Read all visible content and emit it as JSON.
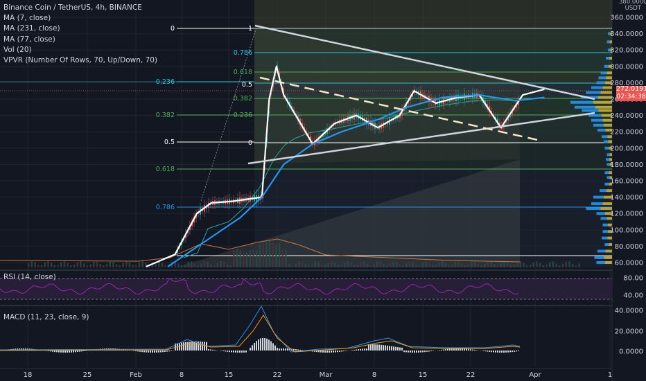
{
  "header": {
    "title": "Binance Coin / TetherUS, 4h, BINANCE",
    "indicators": [
      "MA (7, close)",
      "MA (231, close)",
      "MA (77, close)",
      "Vol (20)",
      "VPVR (Number Of Rows, 70, Up/Down, 70)"
    ]
  },
  "price_axis": {
    "unit_top": "380.0000",
    "unit": "USDT",
    "ticks": [
      "360.0000",
      "340.0000",
      "320.0000",
      "300.0000",
      "280.0000",
      "260.0000",
      "240.0000",
      "220.0000",
      "200.0000",
      "180.0000",
      "160.0000",
      "140.0000",
      "120.0000",
      "100.0000",
      "80.0000",
      "60.0000"
    ]
  },
  "price_tag": {
    "price": "272.0191",
    "countdown": "02:34:38"
  },
  "fib_left": {
    "labels": [
      "0",
      "0.236",
      "0.382",
      "0.5",
      "0.618",
      "0.786"
    ]
  },
  "fib_right": {
    "labels": [
      "1",
      "0.786",
      "0.618",
      "0.5",
      "0.382",
      "0.236",
      "0"
    ]
  },
  "rsi": {
    "label": "RSI (14, close)",
    "ticks": [
      "80.00",
      "40.00"
    ]
  },
  "macd": {
    "label": "MACD (11, 23, close, 9)",
    "ticks": [
      "40.0000",
      "20.0000",
      "0.0000"
    ]
  },
  "time_axis": {
    "ticks": [
      "18",
      "25",
      "Feb",
      "8",
      "15",
      "22",
      "Mar",
      "8",
      "15",
      "22",
      "Apr",
      "1"
    ]
  },
  "colors": {
    "background": "#131722",
    "ma7": "#ffffff",
    "ma77": "#2196f3",
    "ma231": "#26a69a",
    "rsi": "#9c27b0",
    "fib_green": "#4caf50",
    "fib_cyan": "#26c6da",
    "vpvr_up": "#2196f3",
    "vpvr_down": "#c9b037",
    "price_tag": "#ef5350"
  },
  "chart_data": {
    "type": "line",
    "series": [
      {
        "name": "MA (7, close)",
        "x": [
          "2021-02-02",
          "2021-02-06",
          "2021-02-09",
          "2021-02-11",
          "2021-02-14",
          "2021-02-18",
          "2021-02-19",
          "2021-02-20",
          "2021-02-21",
          "2021-02-23",
          "2021-02-25",
          "2021-02-28",
          "2021-03-03",
          "2021-03-06",
          "2021-03-09",
          "2021-03-11",
          "2021-03-14",
          "2021-03-17",
          "2021-03-20",
          "2021-03-23",
          "2021-03-26",
          "2021-03-29"
        ],
        "values": [
          55,
          70,
          120,
          133,
          135,
          140,
          260,
          300,
          265,
          235,
          205,
          230,
          240,
          225,
          240,
          270,
          255,
          262,
          265,
          225,
          265,
          272
        ]
      },
      {
        "name": "MA (77, close)",
        "x": [
          "2021-02-05",
          "2021-02-10",
          "2021-02-15",
          "2021-02-18",
          "2021-02-21",
          "2021-02-25",
          "2021-03-01",
          "2021-03-06",
          "2021-03-10",
          "2021-03-15",
          "2021-03-20",
          "2021-03-25",
          "2021-03-29"
        ],
        "values": [
          55,
          85,
          115,
          140,
          180,
          205,
          220,
          235,
          250,
          262,
          265,
          258,
          262
        ]
      }
    ],
    "ylim": [
      50,
      385
    ],
    "fib_levels_left": [
      0,
      0.236,
      0.382,
      0.5,
      0.618,
      0.786
    ],
    "fib_levels_right": [
      1,
      0.786,
      0.618,
      0.5,
      0.382,
      0.236,
      0
    ],
    "last_price": 272.0191
  }
}
